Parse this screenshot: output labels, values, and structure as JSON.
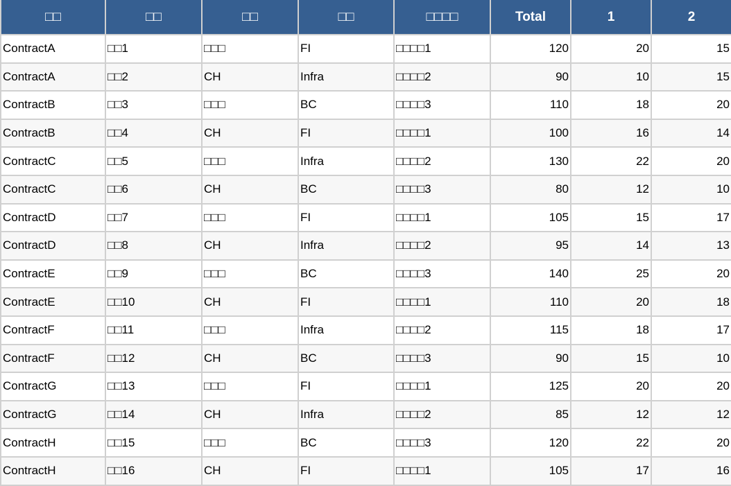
{
  "headers": [
    "□□",
    "□□",
    "□□",
    "□□",
    "□□□□",
    "Total",
    "1",
    "2"
  ],
  "rows": [
    [
      "ContractA",
      "□□1",
      "□□□",
      "FI",
      "□□□□1",
      "120",
      "20",
      "15"
    ],
    [
      "ContractA",
      "□□2",
      "CH",
      "Infra",
      "□□□□2",
      "90",
      "10",
      "15"
    ],
    [
      "ContractB",
      "□□3",
      "□□□",
      "BC",
      "□□□□3",
      "110",
      "18",
      "20"
    ],
    [
      "ContractB",
      "□□4",
      "CH",
      "FI",
      "□□□□1",
      "100",
      "16",
      "14"
    ],
    [
      "ContractC",
      "□□5",
      "□□□",
      "Infra",
      "□□□□2",
      "130",
      "22",
      "20"
    ],
    [
      "ContractC",
      "□□6",
      "CH",
      "BC",
      "□□□□3",
      "80",
      "12",
      "10"
    ],
    [
      "ContractD",
      "□□7",
      "□□□",
      "FI",
      "□□□□1",
      "105",
      "15",
      "17"
    ],
    [
      "ContractD",
      "□□8",
      "CH",
      "Infra",
      "□□□□2",
      "95",
      "14",
      "13"
    ],
    [
      "ContractE",
      "□□9",
      "□□□",
      "BC",
      "□□□□3",
      "140",
      "25",
      "20"
    ],
    [
      "ContractE",
      "□□10",
      "CH",
      "FI",
      "□□□□1",
      "110",
      "20",
      "18"
    ],
    [
      "ContractF",
      "□□11",
      "□□□",
      "Infra",
      "□□□□2",
      "115",
      "18",
      "17"
    ],
    [
      "ContractF",
      "□□12",
      "CH",
      "BC",
      "□□□□3",
      "90",
      "15",
      "10"
    ],
    [
      "ContractG",
      "□□13",
      "□□□",
      "FI",
      "□□□□1",
      "125",
      "20",
      "20"
    ],
    [
      "ContractG",
      "□□14",
      "CH",
      "Infra",
      "□□□□2",
      "85",
      "12",
      "12"
    ],
    [
      "ContractH",
      "□□15",
      "□□□",
      "BC",
      "□□□□3",
      "120",
      "22",
      "20"
    ],
    [
      "ContractH",
      "□□16",
      "CH",
      "FI",
      "□□□□1",
      "105",
      "17",
      "16"
    ]
  ],
  "colors": {
    "header_bg": "#365f91",
    "header_text": "#ffffff",
    "row_alt": "#f7f7f7",
    "border": "#d0d0d0"
  }
}
